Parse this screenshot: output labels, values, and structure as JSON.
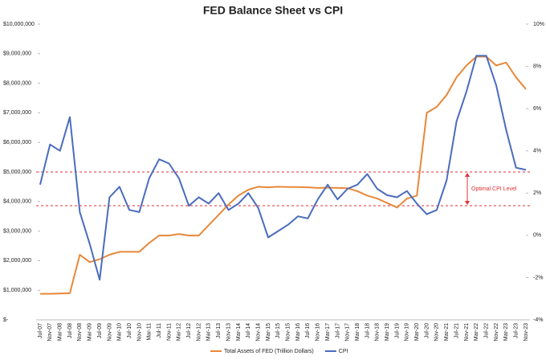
{
  "chart_data": {
    "type": "line",
    "title": "FED Balance Sheet vs CPI",
    "categories": [
      "Jul-07",
      "Nov-07",
      "Mar-08",
      "Jul-08",
      "Nov-08",
      "Mar-09",
      "Jul-09",
      "Nov-09",
      "Mar-10",
      "Jul-10",
      "Nov-10",
      "Mar-11",
      "Jul-11",
      "Nov-11",
      "Mar-12",
      "Jul-12",
      "Nov-12",
      "Mar-13",
      "Jul-13",
      "Nov-13",
      "Mar-14",
      "Jul-14",
      "Nov-14",
      "Mar-15",
      "Jul-15",
      "Nov-15",
      "Mar-16",
      "Jul-16",
      "Nov-16",
      "Mar-17",
      "Jul-17",
      "Nov-17",
      "Mar-18",
      "Jul-18",
      "Nov-18",
      "Mar-19",
      "Jul-19",
      "Nov-19",
      "Mar-20",
      "Jul-20",
      "Nov-20",
      "Mar-21",
      "Jul-21",
      "Nov-21",
      "Mar-22",
      "Jul-22",
      "Nov-22",
      "Mar-23",
      "Jul-23",
      "Nov-23"
    ],
    "series": [
      {
        "name": "Total Assets of FED (Trillion Dollars)",
        "color": "#e8883a",
        "axis": "y",
        "values": [
          880000,
          880000,
          890000,
          900000,
          2200000,
          1950000,
          2050000,
          2200000,
          2300000,
          2300000,
          2300000,
          2600000,
          2850000,
          2850000,
          2900000,
          2850000,
          2850000,
          3200000,
          3550000,
          3900000,
          4200000,
          4400000,
          4500000,
          4480000,
          4500000,
          4490000,
          4490000,
          4480000,
          4460000,
          4470000,
          4460000,
          4450000,
          4350000,
          4200000,
          4100000,
          3950000,
          3800000,
          4100000,
          4200000,
          7000000,
          7200000,
          7600000,
          8200000,
          8600000,
          8900000,
          8900000,
          8600000,
          8700000,
          8200000,
          7800000
        ]
      },
      {
        "name": "CPI",
        "color": "#4a6cbf",
        "axis": "y2",
        "values": [
          2.4,
          4.3,
          4.0,
          5.6,
          1.1,
          -0.4,
          -2.1,
          1.8,
          2.3,
          1.2,
          1.1,
          2.7,
          3.6,
          3.4,
          2.7,
          1.4,
          1.8,
          1.5,
          2.0,
          1.2,
          1.5,
          2.0,
          1.3,
          -0.1,
          0.2,
          0.5,
          0.9,
          0.8,
          1.7,
          2.4,
          1.7,
          2.2,
          2.4,
          2.9,
          2.2,
          1.9,
          1.8,
          2.1,
          1.5,
          1.0,
          1.2,
          2.6,
          5.4,
          6.8,
          8.5,
          8.5,
          7.1,
          5.0,
          3.2,
          3.1
        ]
      }
    ],
    "ylim": [
      0,
      10000000
    ],
    "yticks": [
      {
        "value": 0,
        "label": "$-"
      },
      {
        "value": 1000000,
        "label": "$1,000,000"
      },
      {
        "value": 2000000,
        "label": "$2,000,000"
      },
      {
        "value": 3000000,
        "label": "$3,000,000"
      },
      {
        "value": 4000000,
        "label": "$4,000,000"
      },
      {
        "value": 5000000,
        "label": "$5,000,000"
      },
      {
        "value": 6000000,
        "label": "$6,000,000"
      },
      {
        "value": 7000000,
        "label": "$7,000,000"
      },
      {
        "value": 8000000,
        "label": "$8,000,000"
      },
      {
        "value": 9000000,
        "label": "$9,000,000"
      },
      {
        "value": 10000000,
        "label": "$10,000,000"
      }
    ],
    "y2lim": [
      -4,
      10
    ],
    "y2ticks": [
      {
        "value": -4,
        "label": "-4%"
      },
      {
        "value": -2,
        "label": "-2%"
      },
      {
        "value": 0,
        "label": "0%"
      },
      {
        "value": 2,
        "label": "2%"
      },
      {
        "value": 4,
        "label": "4%"
      },
      {
        "value": 6,
        "label": "6%"
      },
      {
        "value": 8,
        "label": "8%"
      },
      {
        "value": 10,
        "label": "10%"
      }
    ],
    "reference_lines": [
      {
        "value": 3,
        "axis": "y2",
        "color": "#e03030"
      },
      {
        "value": 1.4,
        "axis": "y2",
        "color": "#e03030"
      }
    ],
    "annotation": "Optimal CPI Level",
    "grid": false
  }
}
